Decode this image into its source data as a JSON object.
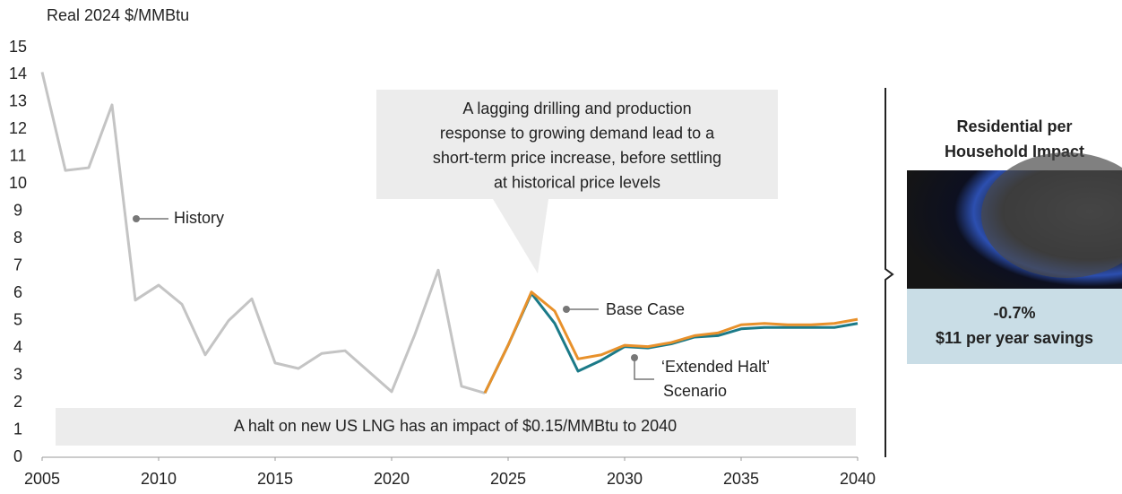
{
  "chart_data": {
    "type": "line",
    "y_label": "Real 2024 $/MMBtu",
    "xlim": [
      2005,
      2040
    ],
    "xticks": [
      2005,
      2010,
      2015,
      2020,
      2025,
      2030,
      2035,
      2040
    ],
    "ylim": [
      0,
      15
    ],
    "yticks": [
      0,
      1,
      2,
      3,
      4,
      5,
      6,
      7,
      8,
      9,
      10,
      11,
      12,
      13,
      14,
      15
    ],
    "series": [
      {
        "name": "History",
        "color": "#c4c4c4",
        "x": [
          2005,
          2006,
          2007,
          2008,
          2009,
          2010,
          2011,
          2012,
          2013,
          2014,
          2015,
          2016,
          2017,
          2018,
          2019,
          2020,
          2021,
          2022,
          2023,
          2024
        ],
        "values": [
          14.1,
          10.5,
          10.6,
          12.9,
          5.75,
          6.3,
          5.6,
          3.75,
          5.0,
          5.8,
          3.45,
          3.25,
          3.8,
          3.9,
          3.15,
          2.4,
          4.5,
          6.85,
          2.6,
          2.35
        ]
      },
      {
        "name": "‘Extended Halt’ Scenario",
        "color": "#1b7a88",
        "x": [
          2024,
          2025,
          2026,
          2027,
          2028,
          2029,
          2030,
          2031,
          2032,
          2033,
          2034,
          2035,
          2036,
          2037,
          2038,
          2039,
          2040
        ],
        "values": [
          2.35,
          4.1,
          6.0,
          4.9,
          3.15,
          3.55,
          4.05,
          4.0,
          4.15,
          4.4,
          4.45,
          4.7,
          4.75,
          4.75,
          4.75,
          4.75,
          4.9
        ]
      },
      {
        "name": "Base Case",
        "color": "#e8912b",
        "x": [
          2024,
          2025,
          2026,
          2027,
          2028,
          2029,
          2030,
          2031,
          2032,
          2033,
          2034,
          2035,
          2036,
          2037,
          2038,
          2039,
          2040
        ],
        "values": [
          2.35,
          4.1,
          6.05,
          5.35,
          3.6,
          3.75,
          4.1,
          4.05,
          4.2,
          4.45,
          4.55,
          4.85,
          4.9,
          4.85,
          4.85,
          4.9,
          5.05
        ]
      }
    ],
    "callout": [
      "A lagging drilling and production",
      "response to growing demand lead to a",
      "short-term price increase, before settling",
      "at historical price levels"
    ],
    "banner": "A halt on new US LNG has an impact of $0.15/MMBtu to 2040",
    "extended_label": [
      "‘Extended Halt’",
      "Scenario"
    ],
    "panel": {
      "title": [
        "Residential per",
        "Household Impact"
      ],
      "change": "-0.7%",
      "savings": "$11 per year savings"
    }
  }
}
